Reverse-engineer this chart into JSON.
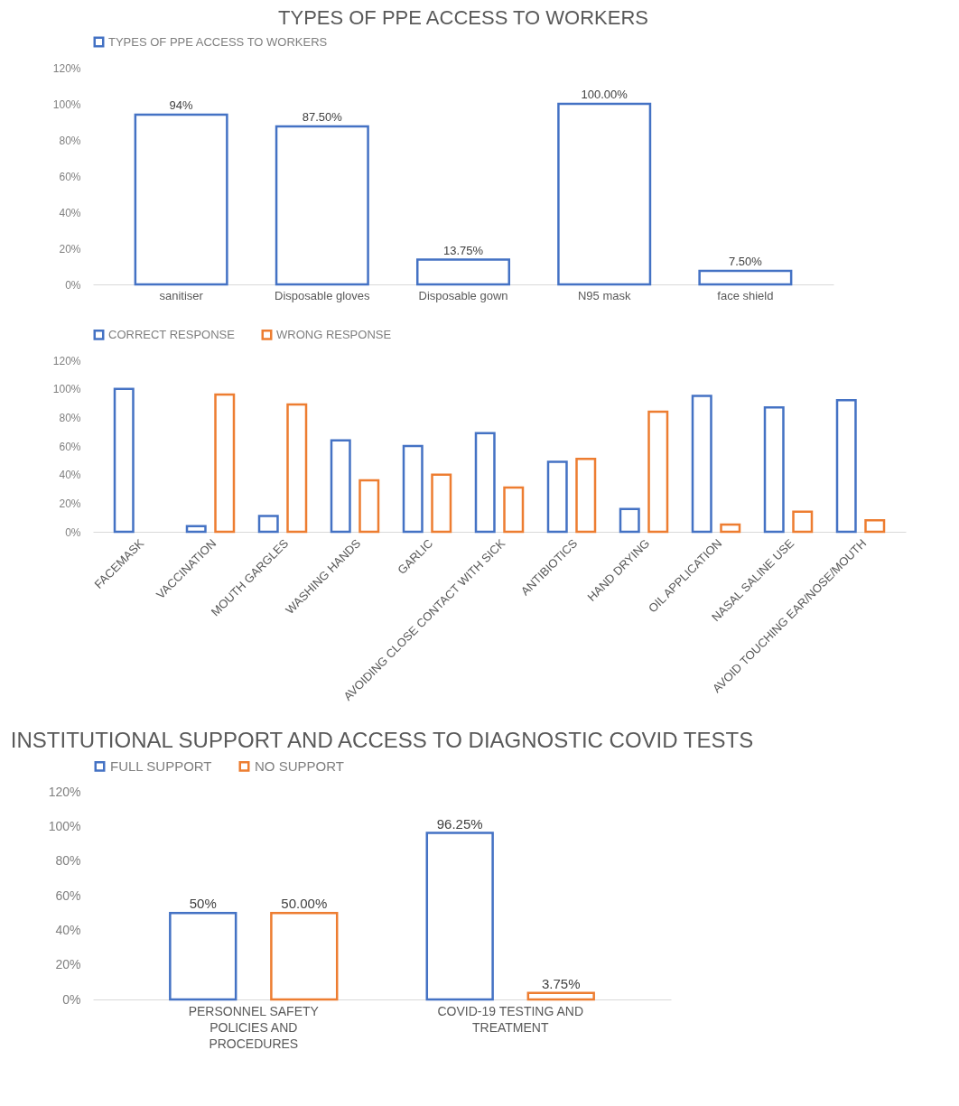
{
  "chart_data": [
    {
      "type": "bar",
      "title": "TYPES OF PPE ACCESS TO WORKERS",
      "categories": [
        "sanitiser",
        "Disposable gloves",
        "Disposable gown",
        "N95 mask",
        "face shield"
      ],
      "series": [
        {
          "name": "TYPES OF PPE ACCESS TO WORKERS",
          "color": "#4472c4",
          "values": [
            94,
            87.5,
            13.75,
            100,
            7.5
          ],
          "value_labels": [
            "94%",
            "87.50%",
            "13.75%",
            "100.00%",
            "7.50%"
          ]
        }
      ],
      "ylim": [
        0,
        120
      ],
      "yticks": [
        {
          "value": 0,
          "label": "0%"
        },
        {
          "value": 20,
          "label": "20%"
        },
        {
          "value": 40,
          "label": "40%"
        },
        {
          "value": 60,
          "label": "60%"
        },
        {
          "value": 80,
          "label": "80%"
        },
        {
          "value": 100,
          "label": "100%"
        },
        {
          "value": 120,
          "label": "120%"
        }
      ],
      "grid": false,
      "legend": "top"
    },
    {
      "type": "bar",
      "categories": [
        "FACEMASK",
        "VACCINATION",
        "MOUTH GARGLES",
        "WASHING HANDS",
        "GARLIC",
        "AVOIDING CLOSE CONTACT WITH SICK",
        "ANTIBIOTICS",
        "HAND DRYING",
        "OIL APPLICATION",
        "NASAL SALINE USE",
        "AVOID TOUCHING EAR/NOSE/MOUTH"
      ],
      "series": [
        {
          "name": "CORRECT RESPONSE",
          "color": "#4472c4",
          "values": [
            100,
            4,
            11,
            64,
            60,
            69,
            49,
            16,
            95,
            87,
            92
          ]
        },
        {
          "name": "WRONG RESPONSE",
          "color": "#ed7d31",
          "values": [
            null,
            96,
            89,
            36,
            40,
            31,
            51,
            84,
            5,
            14,
            8
          ]
        }
      ],
      "ylim": [
        0,
        120
      ],
      "yticks": [
        {
          "value": 0,
          "label": "0%"
        },
        {
          "value": 20,
          "label": "20%"
        },
        {
          "value": 40,
          "label": "40%"
        },
        {
          "value": 60,
          "label": "60%"
        },
        {
          "value": 80,
          "label": "80%"
        },
        {
          "value": 100,
          "label": "100%"
        },
        {
          "value": 120,
          "label": "120%"
        }
      ],
      "grid": false,
      "legend": "top"
    },
    {
      "type": "bar",
      "title": "INSTITUTIONAL SUPPORT AND ACCESS TO DIAGNOSTIC COVID TESTS",
      "categories": [
        "PERSONNEL SAFETY POLICIES AND PROCEDURES",
        "COVID-19 TESTING AND TREATMENT"
      ],
      "series": [
        {
          "name": "FULL SUPPORT",
          "color": "#4472c4",
          "values": [
            50,
            96.25
          ],
          "value_labels": [
            "50%",
            "96.25%"
          ]
        },
        {
          "name": "NO SUPPORT",
          "color": "#ed7d31",
          "values": [
            50,
            3.75
          ],
          "value_labels": [
            "50.00%",
            "3.75%"
          ]
        }
      ],
      "ylim": [
        0,
        120
      ],
      "yticks": [
        {
          "value": 0,
          "label": "0%"
        },
        {
          "value": 20,
          "label": "20%"
        },
        {
          "value": 40,
          "label": "40%"
        },
        {
          "value": 60,
          "label": "60%"
        },
        {
          "value": 80,
          "label": "80%"
        },
        {
          "value": 100,
          "label": "100%"
        },
        {
          "value": 120,
          "label": "120%"
        }
      ],
      "grid": false,
      "legend": "top"
    }
  ]
}
